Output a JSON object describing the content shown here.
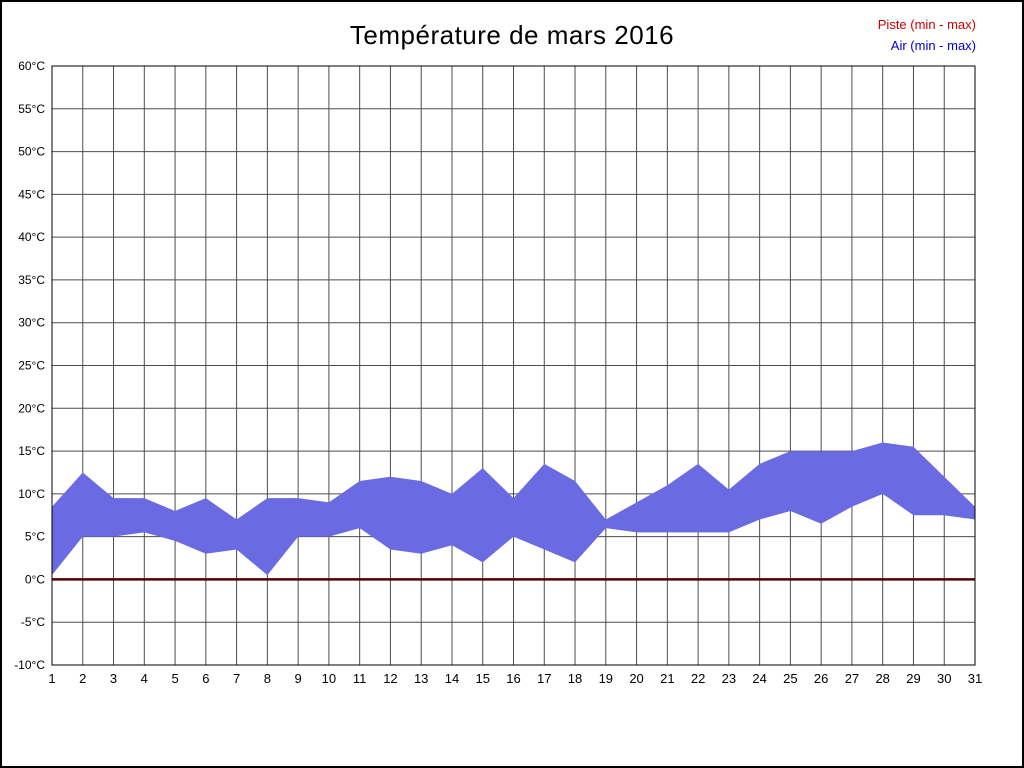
{
  "chart_data": {
    "type": "area",
    "title": "Température de mars 2016",
    "legend": {
      "piste": "Piste (min - max)",
      "air": "Air (min - max)",
      "piste_color": "#cc0000",
      "air_color": "#0000cc",
      "position": "top-right"
    },
    "xlabel": "",
    "ylabel": "",
    "ylim": [
      -10,
      60
    ],
    "y_tick_step": 5,
    "y_tick_suffix": "°C",
    "grid": true,
    "days": [
      1,
      2,
      3,
      4,
      5,
      6,
      7,
      8,
      9,
      10,
      11,
      12,
      13,
      14,
      15,
      16,
      17,
      18,
      19,
      20,
      21,
      22,
      23,
      24,
      25,
      26,
      27,
      28,
      29,
      30,
      31
    ],
    "series": [
      {
        "name": "Air min",
        "values": [
          0.5,
          5,
          5,
          5.5,
          4.5,
          3,
          3.5,
          0.5,
          5,
          5,
          6,
          3.5,
          3,
          4,
          2,
          5,
          3.5,
          2,
          6,
          5.5,
          5.5,
          5.5,
          5.5,
          7,
          8,
          6.5,
          8.5,
          10,
          7.5,
          7.5,
          7
        ]
      },
      {
        "name": "Air max",
        "values": [
          8.5,
          12.5,
          9.5,
          9.5,
          8,
          9.5,
          7,
          9.5,
          9.5,
          9,
          11.5,
          12,
          11.5,
          10,
          13,
          9.5,
          13.5,
          11.5,
          7,
          9,
          11,
          13.5,
          10.5,
          13.5,
          15,
          15,
          15,
          16,
          15.5,
          12,
          8.5
        ]
      },
      {
        "name": "Piste",
        "values": [
          0,
          0,
          0,
          0,
          0,
          0,
          0,
          0,
          0,
          0,
          0,
          0,
          0,
          0,
          0,
          0,
          0,
          0,
          0,
          0,
          0,
          0,
          0,
          0,
          0,
          0,
          0,
          0,
          0,
          0,
          0
        ]
      }
    ],
    "colors": {
      "air_band_fill": "#6a6ae2",
      "piste_line": "#550000",
      "grid_line": "#4d4d4d",
      "plot_border": "#000000"
    }
  }
}
